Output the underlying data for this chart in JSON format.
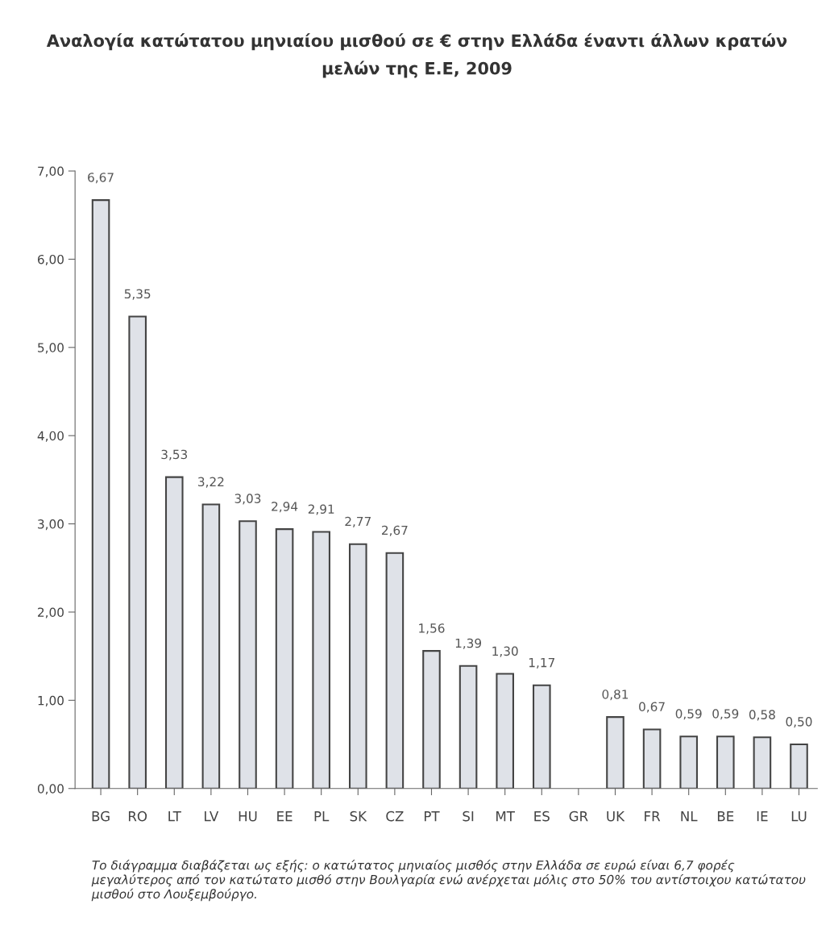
{
  "chart_data": {
    "type": "bar",
    "title": "Αναλογία κατώτατου μηνιαίου μισθού σε € στην Ελλάδα έναντι άλλων κρατών\nμελών της Ε.Ε, 2009",
    "categories": [
      "BG",
      "RO",
      "LT",
      "LV",
      "HU",
      "EE",
      "PL",
      "SK",
      "CZ",
      "PT",
      "SI",
      "MT",
      "ES",
      "GR",
      "UK",
      "FR",
      "NL",
      "BE",
      "IE",
      "LU"
    ],
    "values": [
      6.67,
      5.35,
      3.53,
      3.22,
      3.03,
      2.94,
      2.91,
      2.77,
      2.67,
      1.56,
      1.39,
      1.3,
      1.17,
      null,
      0.81,
      0.67,
      0.59,
      0.59,
      0.58,
      0.5
    ],
    "value_labels": [
      "6,67",
      "5,35",
      "3,53",
      "3,22",
      "3,03",
      "2,94",
      "2,91",
      "2,77",
      "2,67",
      "1,56",
      "1,39",
      "1,30",
      "1,17",
      null,
      "0,81",
      "0,67",
      "0,59",
      "0,59",
      "0,58",
      "0,50"
    ],
    "color": "#dfe2e8",
    "ylim": [
      0,
      7
    ],
    "yticks": [
      {
        "value": 0,
        "label": "0,00"
      },
      {
        "value": 1,
        "label": "1,00"
      },
      {
        "value": 2,
        "label": "2,00"
      },
      {
        "value": 3,
        "label": "3,00"
      },
      {
        "value": 4,
        "label": "4,00"
      },
      {
        "value": 5,
        "label": "5,00"
      },
      {
        "value": 6,
        "label": "6,00"
      },
      {
        "value": 7,
        "label": "7,00"
      }
    ],
    "grid": false,
    "annotations": [
      "Το διάγραμμα διαβάζεται ως εξής: ο κατώτατος μηνιαίος μισθός στην Ελλάδα σε ευρώ είναι 6,7 φορές μεγαλύτερος από τον κατώτατο μισθό στην Βουλγαρία ενώ ανέρχεται μόλις στο 50% του αντίστοιχου κατώτατου μισθού στο Λουξεμβούργο."
    ]
  }
}
